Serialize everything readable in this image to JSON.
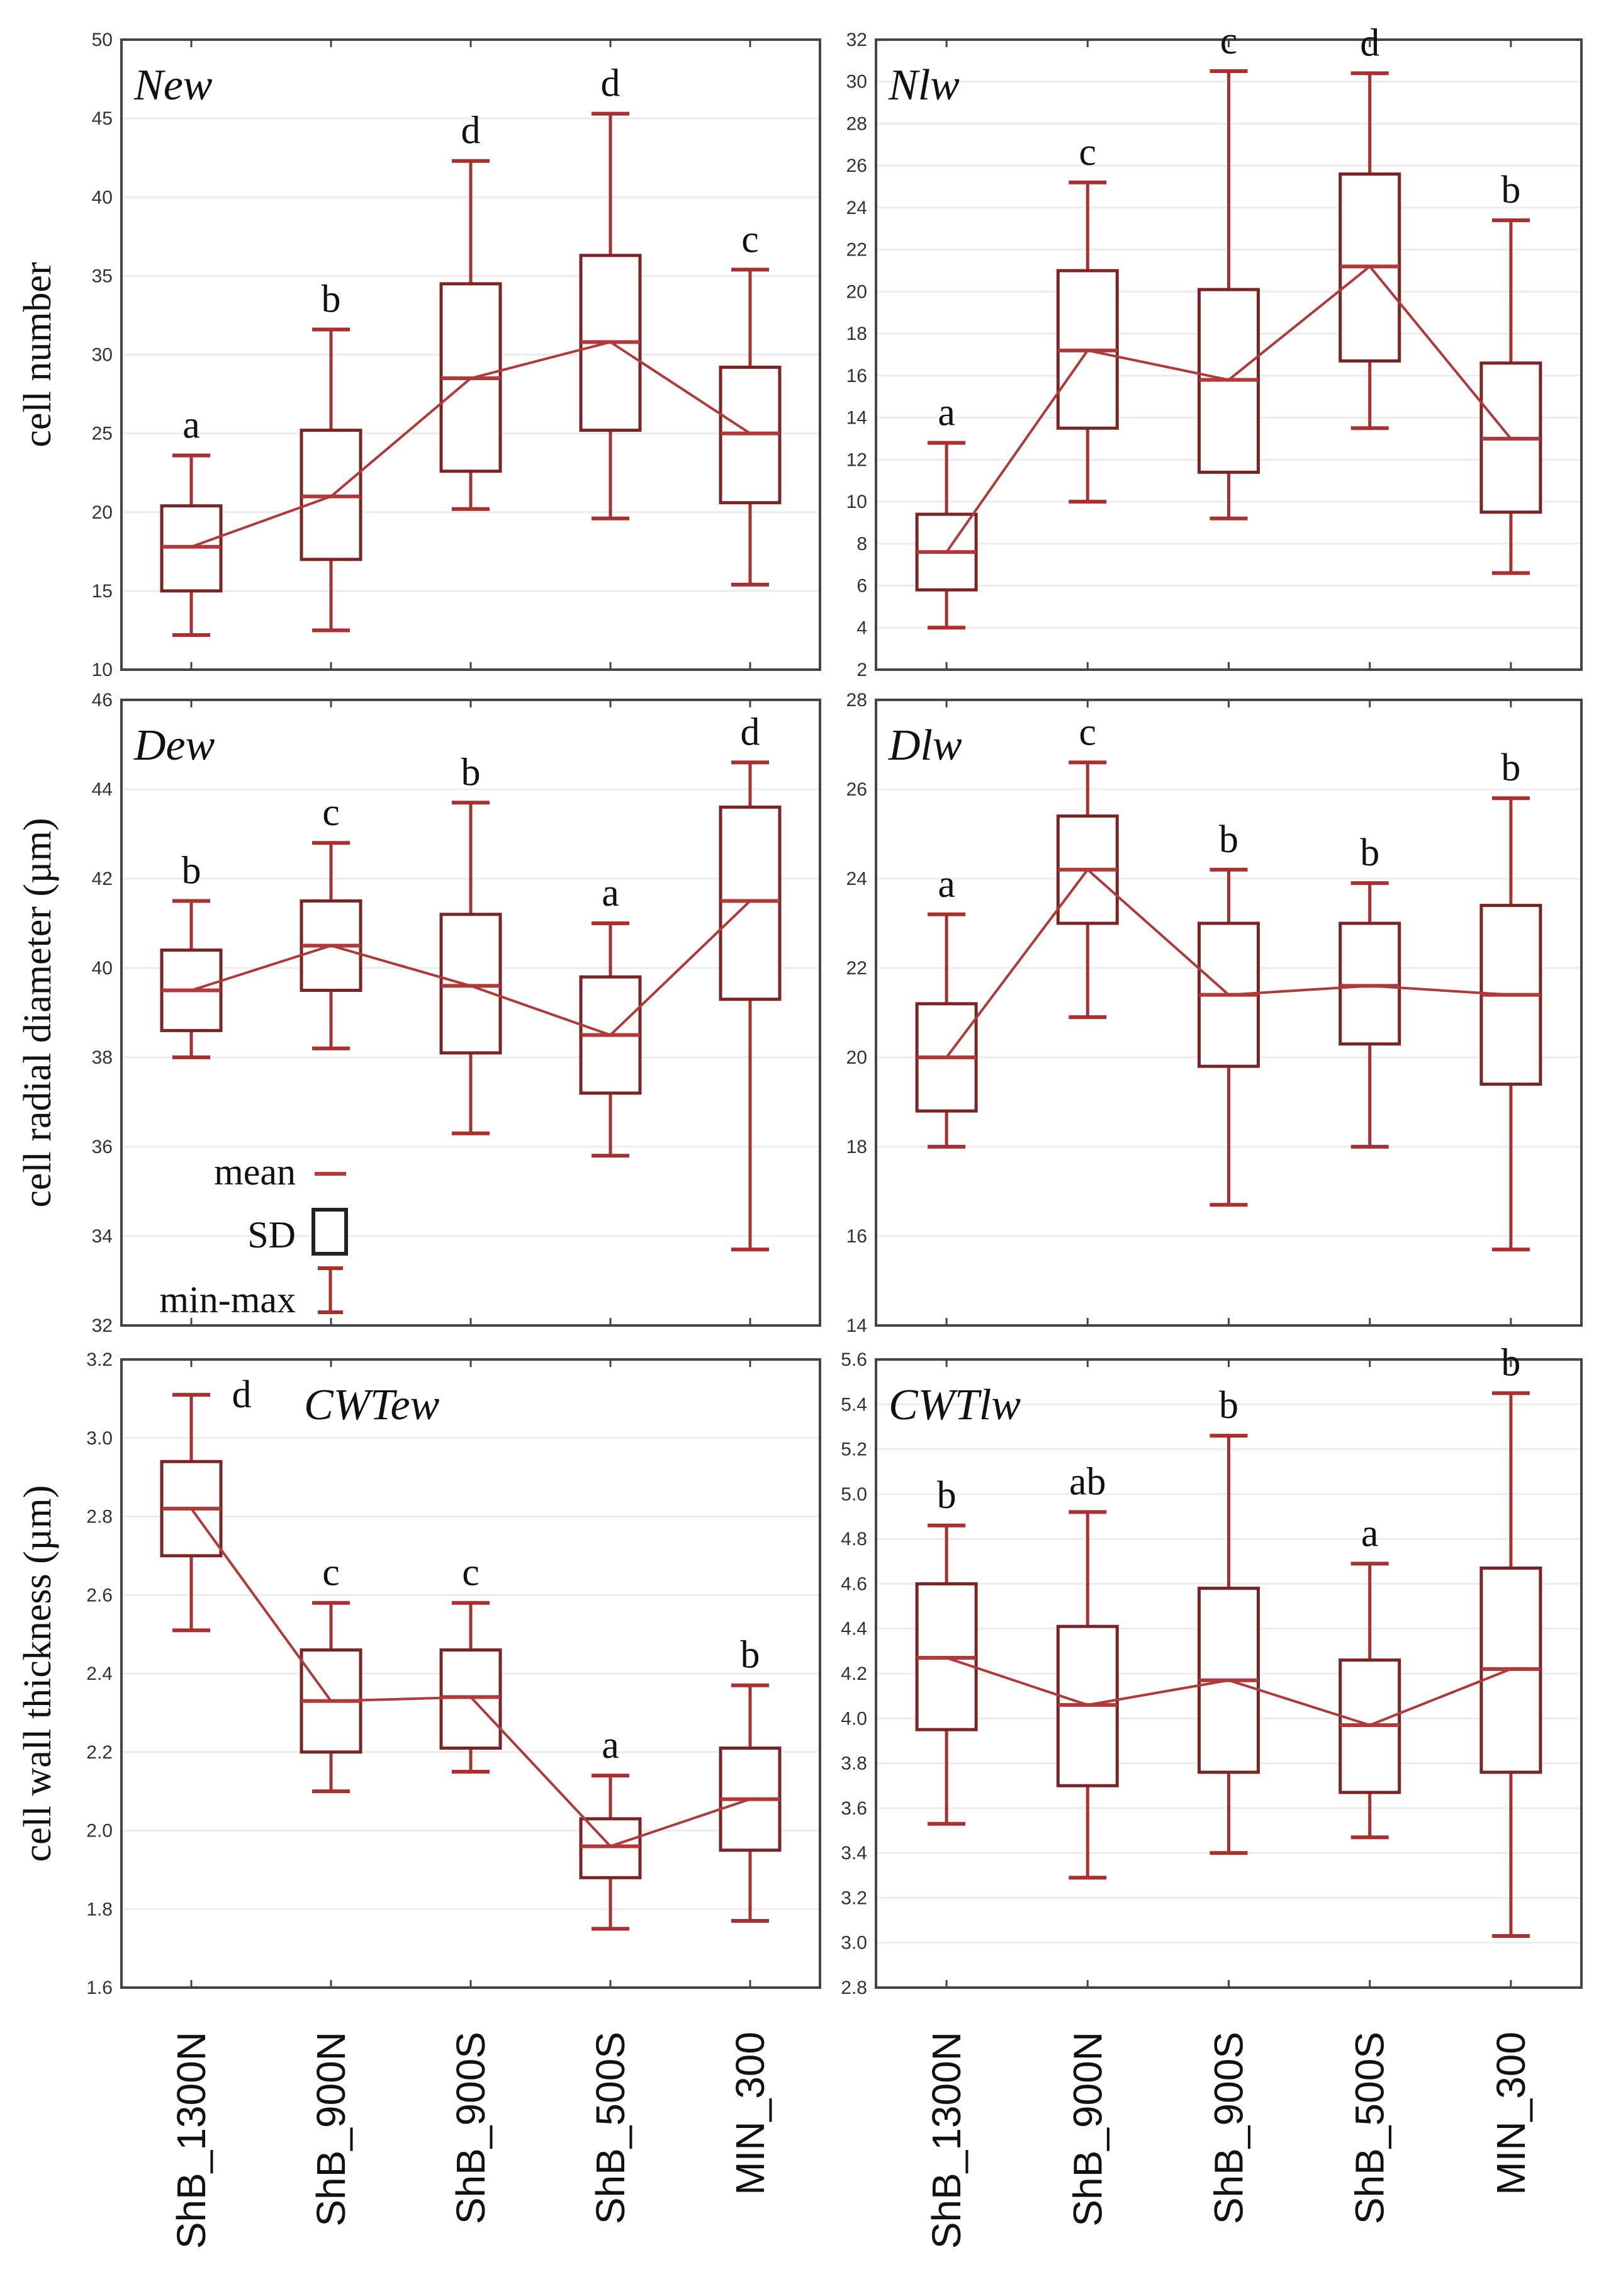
{
  "colors": {
    "box": "#7a2424",
    "whisker": "#a83030",
    "mean_line": "#b03a3a",
    "grid": "#ececec",
    "frame": "#444444"
  },
  "legend": {
    "mean": "mean",
    "sd": "SD",
    "minmax": "min-max"
  },
  "chart_data": [
    {
      "type": "box",
      "title": "New",
      "ylabel": "cell number",
      "ylim": [
        10,
        50
      ],
      "yticks": [
        10,
        15,
        20,
        25,
        30,
        35,
        40,
        45,
        50
      ],
      "categories": [
        "ShB_1300N",
        "ShB_900N",
        "ShB_900S",
        "ShB_500S",
        "MIN_300"
      ],
      "min": [
        12.2,
        12.5,
        20.2,
        19.6,
        15.4
      ],
      "max": [
        23.6,
        31.6,
        42.3,
        45.3,
        35.4
      ],
      "sd_low": [
        15.0,
        17.0,
        22.6,
        25.2,
        20.6
      ],
      "sd_high": [
        20.4,
        25.2,
        34.5,
        36.3,
        29.2
      ],
      "mean": [
        17.8,
        21.0,
        28.5,
        30.8,
        25.0
      ],
      "letters": [
        "a",
        "b",
        "d",
        "d",
        "c"
      ]
    },
    {
      "type": "box",
      "title": "Nlw",
      "ylabel": "",
      "ylim": [
        2,
        32
      ],
      "yticks": [
        2,
        4,
        6,
        8,
        10,
        12,
        14,
        16,
        18,
        20,
        22,
        24,
        26,
        28,
        30,
        32
      ],
      "categories": [
        "ShB_1300N",
        "ShB_900N",
        "ShB_900S",
        "ShB_500S",
        "MIN_300"
      ],
      "min": [
        4.0,
        10.0,
        9.2,
        13.5,
        6.6
      ],
      "max": [
        12.8,
        25.2,
        30.5,
        30.4,
        23.4
      ],
      "sd_low": [
        5.8,
        13.5,
        11.4,
        16.7,
        9.5
      ],
      "sd_high": [
        9.4,
        21.0,
        20.1,
        25.6,
        16.6
      ],
      "mean": [
        7.6,
        17.2,
        15.8,
        21.2,
        13.0
      ],
      "letters": [
        "a",
        "c",
        "c",
        "d",
        "b"
      ]
    },
    {
      "type": "box",
      "title": "Dew",
      "ylabel": "cell radial diameter (µm)",
      "ylim": [
        32,
        46
      ],
      "yticks": [
        32,
        34,
        36,
        38,
        40,
        42,
        44,
        46
      ],
      "categories": [
        "ShB_1300N",
        "ShB_900N",
        "ShB_900S",
        "ShB_500S",
        "MIN_300"
      ],
      "min": [
        38.0,
        38.2,
        36.3,
        35.8,
        33.7
      ],
      "max": [
        41.5,
        42.8,
        43.7,
        41.0,
        44.6
      ],
      "sd_low": [
        38.6,
        39.5,
        38.1,
        37.2,
        39.3
      ],
      "sd_high": [
        40.4,
        41.5,
        41.2,
        39.8,
        43.6
      ],
      "mean": [
        39.5,
        40.5,
        39.6,
        38.5,
        41.5
      ],
      "letters": [
        "b",
        "c",
        "b",
        "a",
        "d"
      ]
    },
    {
      "type": "box",
      "title": "Dlw",
      "ylabel": "",
      "ylim": [
        14,
        28
      ],
      "yticks": [
        14,
        16,
        18,
        20,
        22,
        24,
        26,
        28
      ],
      "categories": [
        "ShB_1300N",
        "ShB_900N",
        "ShB_900S",
        "ShB_500S",
        "MIN_300"
      ],
      "min": [
        18.0,
        20.9,
        16.7,
        18.0,
        15.7
      ],
      "max": [
        23.2,
        26.6,
        24.2,
        23.9,
        25.8
      ],
      "sd_low": [
        18.8,
        23.0,
        19.8,
        20.3,
        19.4
      ],
      "sd_high": [
        21.2,
        25.4,
        23.0,
        23.0,
        23.4
      ],
      "mean": [
        20.0,
        24.2,
        21.4,
        21.6,
        21.4
      ],
      "letters": [
        "a",
        "c",
        "b",
        "b",
        "b"
      ]
    },
    {
      "type": "box",
      "title": "CWTew",
      "ylabel": "cell wall thickness (µm)",
      "ylim": [
        1.6,
        3.2
      ],
      "yticks": [
        "1.6",
        "1.8",
        "2.0",
        "2.2",
        "2.4",
        "2.6",
        "2.8",
        "3.0",
        "3.2"
      ],
      "categories": [
        "ShB_1300N",
        "ShB_900N",
        "ShB_900S",
        "ShB_500S",
        "MIN_300"
      ],
      "min": [
        2.51,
        2.1,
        2.15,
        1.75,
        1.77
      ],
      "max": [
        3.11,
        2.58,
        2.58,
        2.14,
        2.37
      ],
      "sd_low": [
        2.7,
        2.2,
        2.21,
        1.88,
        1.95
      ],
      "sd_high": [
        2.94,
        2.46,
        2.46,
        2.03,
        2.21
      ],
      "mean": [
        2.82,
        2.33,
        2.34,
        1.96,
        2.08
      ],
      "letters": [
        "d",
        "c",
        "c",
        "a",
        "b"
      ]
    },
    {
      "type": "box",
      "title": "CWTlw",
      "ylabel": "",
      "ylim": [
        2.8,
        5.6
      ],
      "yticks": [
        "2.8",
        "3.0",
        "3.2",
        "3.4",
        "3.6",
        "3.8",
        "4.0",
        "4.2",
        "4.4",
        "4.6",
        "4.8",
        "5.0",
        "5.2",
        "5.4",
        "5.6"
      ],
      "categories": [
        "ShB_1300N",
        "ShB_900N",
        "ShB_900S",
        "ShB_500S",
        "MIN_300"
      ],
      "min": [
        3.53,
        3.29,
        3.4,
        3.47,
        3.03
      ],
      "max": [
        4.86,
        4.92,
        5.26,
        4.69,
        5.45
      ],
      "sd_low": [
        3.95,
        3.7,
        3.76,
        3.67,
        3.76
      ],
      "sd_high": [
        4.6,
        4.41,
        4.58,
        4.26,
        4.67
      ],
      "mean": [
        4.27,
        4.06,
        4.17,
        3.97,
        4.22
      ],
      "letters": [
        "b",
        "ab",
        "b",
        "a",
        "b"
      ]
    }
  ]
}
